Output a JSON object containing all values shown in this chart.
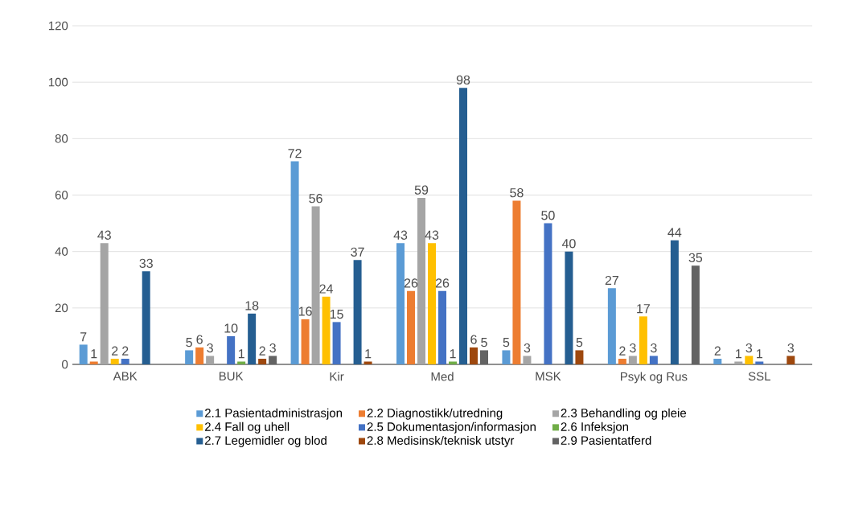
{
  "chart_data": {
    "type": "bar",
    "categories": [
      "ABK",
      "BUK",
      "Kir",
      "Med",
      "MSK",
      "Psyk og Rus",
      "SSL"
    ],
    "series": [
      {
        "name": "2.1 Pasientadministrasjon",
        "color": "#5b9bd5",
        "values": [
          7,
          5,
          72,
          43,
          5,
          27,
          2
        ]
      },
      {
        "name": "2.2 Diagnostikk/utredning",
        "color": "#ed7d31",
        "values": [
          1,
          6,
          16,
          26,
          58,
          2,
          null
        ]
      },
      {
        "name": "2.3 Behandling og pleie",
        "color": "#a5a5a5",
        "values": [
          43,
          3,
          56,
          59,
          3,
          3,
          1
        ]
      },
      {
        "name": "2.4 Fall og uhell",
        "color": "#ffc000",
        "values": [
          2,
          null,
          24,
          43,
          null,
          17,
          3
        ]
      },
      {
        "name": "2.5 Dokumentasjon/informasjon",
        "color": "#4472c4",
        "values": [
          2,
          10,
          15,
          26,
          50,
          3,
          1
        ]
      },
      {
        "name": "2.6 Infeksjon",
        "color": "#70ad47",
        "values": [
          null,
          1,
          null,
          1,
          null,
          null,
          null
        ]
      },
      {
        "name": "2.7 Legemidler og blod",
        "color": "#255e91",
        "values": [
          33,
          18,
          37,
          98,
          40,
          44,
          null
        ]
      },
      {
        "name": "2.8 Medisinsk/teknisk utstyr",
        "color": "#9e480e",
        "values": [
          null,
          2,
          1,
          6,
          5,
          null,
          3
        ]
      },
      {
        "name": "2.9 Pasientatferd",
        "color": "#636363",
        "values": [
          null,
          3,
          null,
          5,
          null,
          35,
          null
        ]
      }
    ],
    "ylim": [
      0,
      120
    ],
    "yticks": [
      0,
      20,
      40,
      60,
      80,
      100,
      120
    ],
    "grid": "y",
    "legend": "bottom",
    "data_labels": true
  }
}
